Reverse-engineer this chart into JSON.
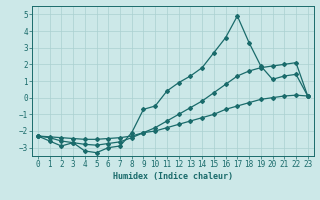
{
  "xlabel": "Humidex (Indice chaleur)",
  "xlim": [
    -0.5,
    23.5
  ],
  "ylim": [
    -3.5,
    5.5
  ],
  "xticks": [
    0,
    1,
    2,
    3,
    4,
    5,
    6,
    7,
    8,
    9,
    10,
    11,
    12,
    13,
    14,
    15,
    16,
    17,
    18,
    19,
    20,
    21,
    22,
    23
  ],
  "yticks": [
    -3,
    -2,
    -1,
    0,
    1,
    2,
    3,
    4,
    5
  ],
  "bg_color": "#cce8e8",
  "line_color": "#1a6b6b",
  "grid_color": "#aad0d0",
  "series": [
    {
      "x": [
        0,
        1,
        2,
        3,
        4,
        5,
        6,
        7,
        8,
        9,
        10,
        11,
        12,
        13,
        14,
        15,
        16,
        17,
        18,
        19,
        20,
        21,
        22,
        23
      ],
      "y": [
        -2.3,
        -2.6,
        -2.9,
        -2.7,
        -3.2,
        -3.3,
        -3.0,
        -2.9,
        -2.1,
        -0.7,
        -0.5,
        0.4,
        0.9,
        1.3,
        1.8,
        2.7,
        3.6,
        4.9,
        3.3,
        1.9,
        1.1,
        1.3,
        1.4,
        0.1
      ]
    },
    {
      "x": [
        0,
        1,
        2,
        3,
        4,
        5,
        6,
        7,
        8,
        9,
        10,
        11,
        12,
        13,
        14,
        15,
        16,
        17,
        18,
        19,
        20,
        21,
        22,
        23
      ],
      "y": [
        -2.3,
        -2.4,
        -2.6,
        -2.7,
        -2.8,
        -2.85,
        -2.75,
        -2.65,
        -2.4,
        -2.1,
        -1.8,
        -1.4,
        -1.0,
        -0.6,
        -0.2,
        0.3,
        0.8,
        1.3,
        1.6,
        1.8,
        1.9,
        2.0,
        2.1,
        0.1
      ]
    },
    {
      "x": [
        0,
        1,
        2,
        3,
        4,
        5,
        6,
        7,
        8,
        9,
        10,
        11,
        12,
        13,
        14,
        15,
        16,
        17,
        18,
        19,
        20,
        21,
        22,
        23
      ],
      "y": [
        -2.3,
        -2.35,
        -2.4,
        -2.45,
        -2.5,
        -2.5,
        -2.45,
        -2.4,
        -2.3,
        -2.1,
        -2.0,
        -1.8,
        -1.6,
        -1.4,
        -1.2,
        -1.0,
        -0.7,
        -0.5,
        -0.3,
        -0.1,
        0.0,
        0.1,
        0.15,
        0.1
      ]
    }
  ]
}
